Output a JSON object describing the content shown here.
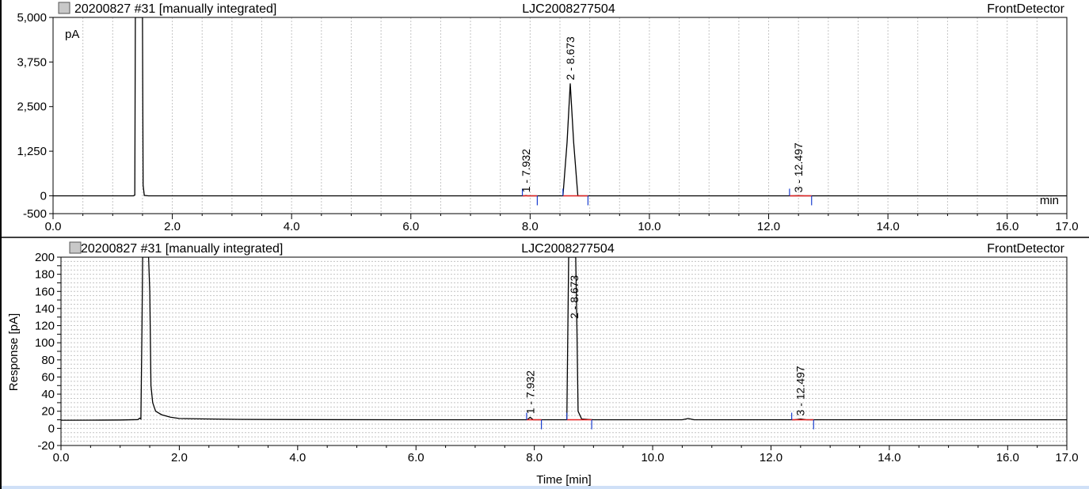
{
  "chart_data": [
    {
      "type": "line",
      "header": {
        "sample": "20200827 #31 [manually integrated]",
        "sample_id": "LJC2008277504",
        "detector": "FrontDetector"
      },
      "unit_label": "pA",
      "xlabel": "",
      "x_unit_label": "min",
      "ylabel": "",
      "xlim": [
        0.0,
        17.0
      ],
      "ylim": [
        -500,
        5000
      ],
      "x_ticks": [
        0.0,
        2.0,
        4.0,
        6.0,
        8.0,
        10.0,
        12.0,
        14.0,
        16.0,
        17.0
      ],
      "x_tick_labels": [
        "0.0",
        "2.0",
        "4.0",
        "6.0",
        "8.0",
        "10.0",
        "12.0",
        "14.0",
        "16.0",
        "17.0"
      ],
      "y_ticks": [
        -500,
        0,
        1250,
        2500,
        3750,
        5000
      ],
      "y_tick_labels": [
        "-500",
        "0",
        "1,250",
        "2,500",
        "3,750",
        "5,000"
      ],
      "grid": "vertical-dashed",
      "series": [
        {
          "x": [
            0.0,
            1.35,
            1.37,
            1.38,
            1.4,
            1.48,
            1.5,
            1.51,
            1.53,
            1.6,
            7.9,
            7.93,
            7.96,
            8.55,
            8.62,
            8.673,
            8.73,
            8.8,
            12.4,
            12.5,
            12.6,
            17.0
          ],
          "y": [
            0,
            0,
            20,
            5000,
            5000,
            5000,
            5000,
            300,
            10,
            0,
            0,
            5,
            0,
            0,
            1500,
            3150,
            1500,
            0,
            0,
            3,
            0,
            0
          ]
        }
      ],
      "peaks": [
        {
          "label": "1 - 7.932",
          "rt": 7.932,
          "height": 4,
          "baseline": [
            7.87,
            8.12
          ]
        },
        {
          "label": "2 - 8.673",
          "rt": 8.673,
          "height": 3150,
          "baseline": [
            8.55,
            8.97
          ]
        },
        {
          "label": "3 - 12.497",
          "rt": 12.497,
          "height": 2,
          "baseline": [
            12.35,
            12.72
          ]
        }
      ]
    },
    {
      "type": "line",
      "header": {
        "sample": "20200827 #31 [manually integrated]",
        "sample_id": "LJC2008277504",
        "detector": "FrontDetector"
      },
      "xlabel": "Time [min]",
      "ylabel": "Response [pA]",
      "xlim": [
        0.0,
        17.0
      ],
      "ylim": [
        -20,
        200
      ],
      "x_ticks": [
        0.0,
        2.0,
        4.0,
        6.0,
        8.0,
        10.0,
        12.0,
        14.0,
        16.0,
        17.0
      ],
      "x_tick_labels": [
        "0.0",
        "2.0",
        "4.0",
        "6.0",
        "8.0",
        "10.0",
        "12.0",
        "14.0",
        "16.0",
        "17.0"
      ],
      "y_ticks": [
        -20,
        0,
        10,
        20,
        30,
        40,
        50,
        60,
        70,
        80,
        90,
        100,
        110,
        120,
        130,
        140,
        150,
        160,
        170,
        180,
        190,
        200
      ],
      "y_tick_labels": [
        "-20",
        "0",
        "",
        "20",
        "",
        "40",
        "",
        "60",
        "",
        "80",
        "",
        "100",
        "",
        "120",
        "",
        "140",
        "",
        "160",
        "",
        "180",
        "",
        "200"
      ],
      "grid": "horizontal-dashed",
      "series": [
        {
          "x": [
            0.0,
            0.5,
            1.0,
            1.3,
            1.33,
            1.35,
            1.37,
            1.38,
            1.4,
            1.46,
            1.48,
            1.5,
            1.52,
            1.55,
            1.6,
            1.7,
            1.85,
            2.0,
            2.5,
            3.0,
            4.0,
            6.0,
            7.88,
            7.93,
            7.98,
            8.5,
            8.55,
            8.58,
            8.6,
            8.7,
            8.72,
            8.74,
            8.8,
            9.0,
            10.5,
            10.6,
            10.7,
            12.4,
            12.5,
            12.6,
            17.0
          ],
          "y": [
            9.5,
            9.6,
            9.8,
            10.2,
            12,
            11,
            120,
            200,
            200,
            200,
            200,
            160,
            50,
            30,
            20,
            16,
            13,
            11.5,
            11,
            10.5,
            10.2,
            10,
            10,
            13,
            10,
            10,
            10,
            200,
            200,
            200,
            120,
            20,
            11,
            10,
            10,
            11.5,
            10,
            10,
            11,
            10,
            10
          ]
        }
      ],
      "peaks": [
        {
          "label": "1 - 7.932",
          "rt": 7.932,
          "height": 13,
          "baseline": [
            7.87,
            8.12
          ]
        },
        {
          "label": "2 - 8.673",
          "rt": 8.673,
          "height": 200,
          "baseline": [
            8.55,
            8.97
          ]
        },
        {
          "label": "3 - 12.497",
          "rt": 12.497,
          "height": 11,
          "baseline": [
            12.35,
            12.72
          ]
        }
      ]
    }
  ]
}
